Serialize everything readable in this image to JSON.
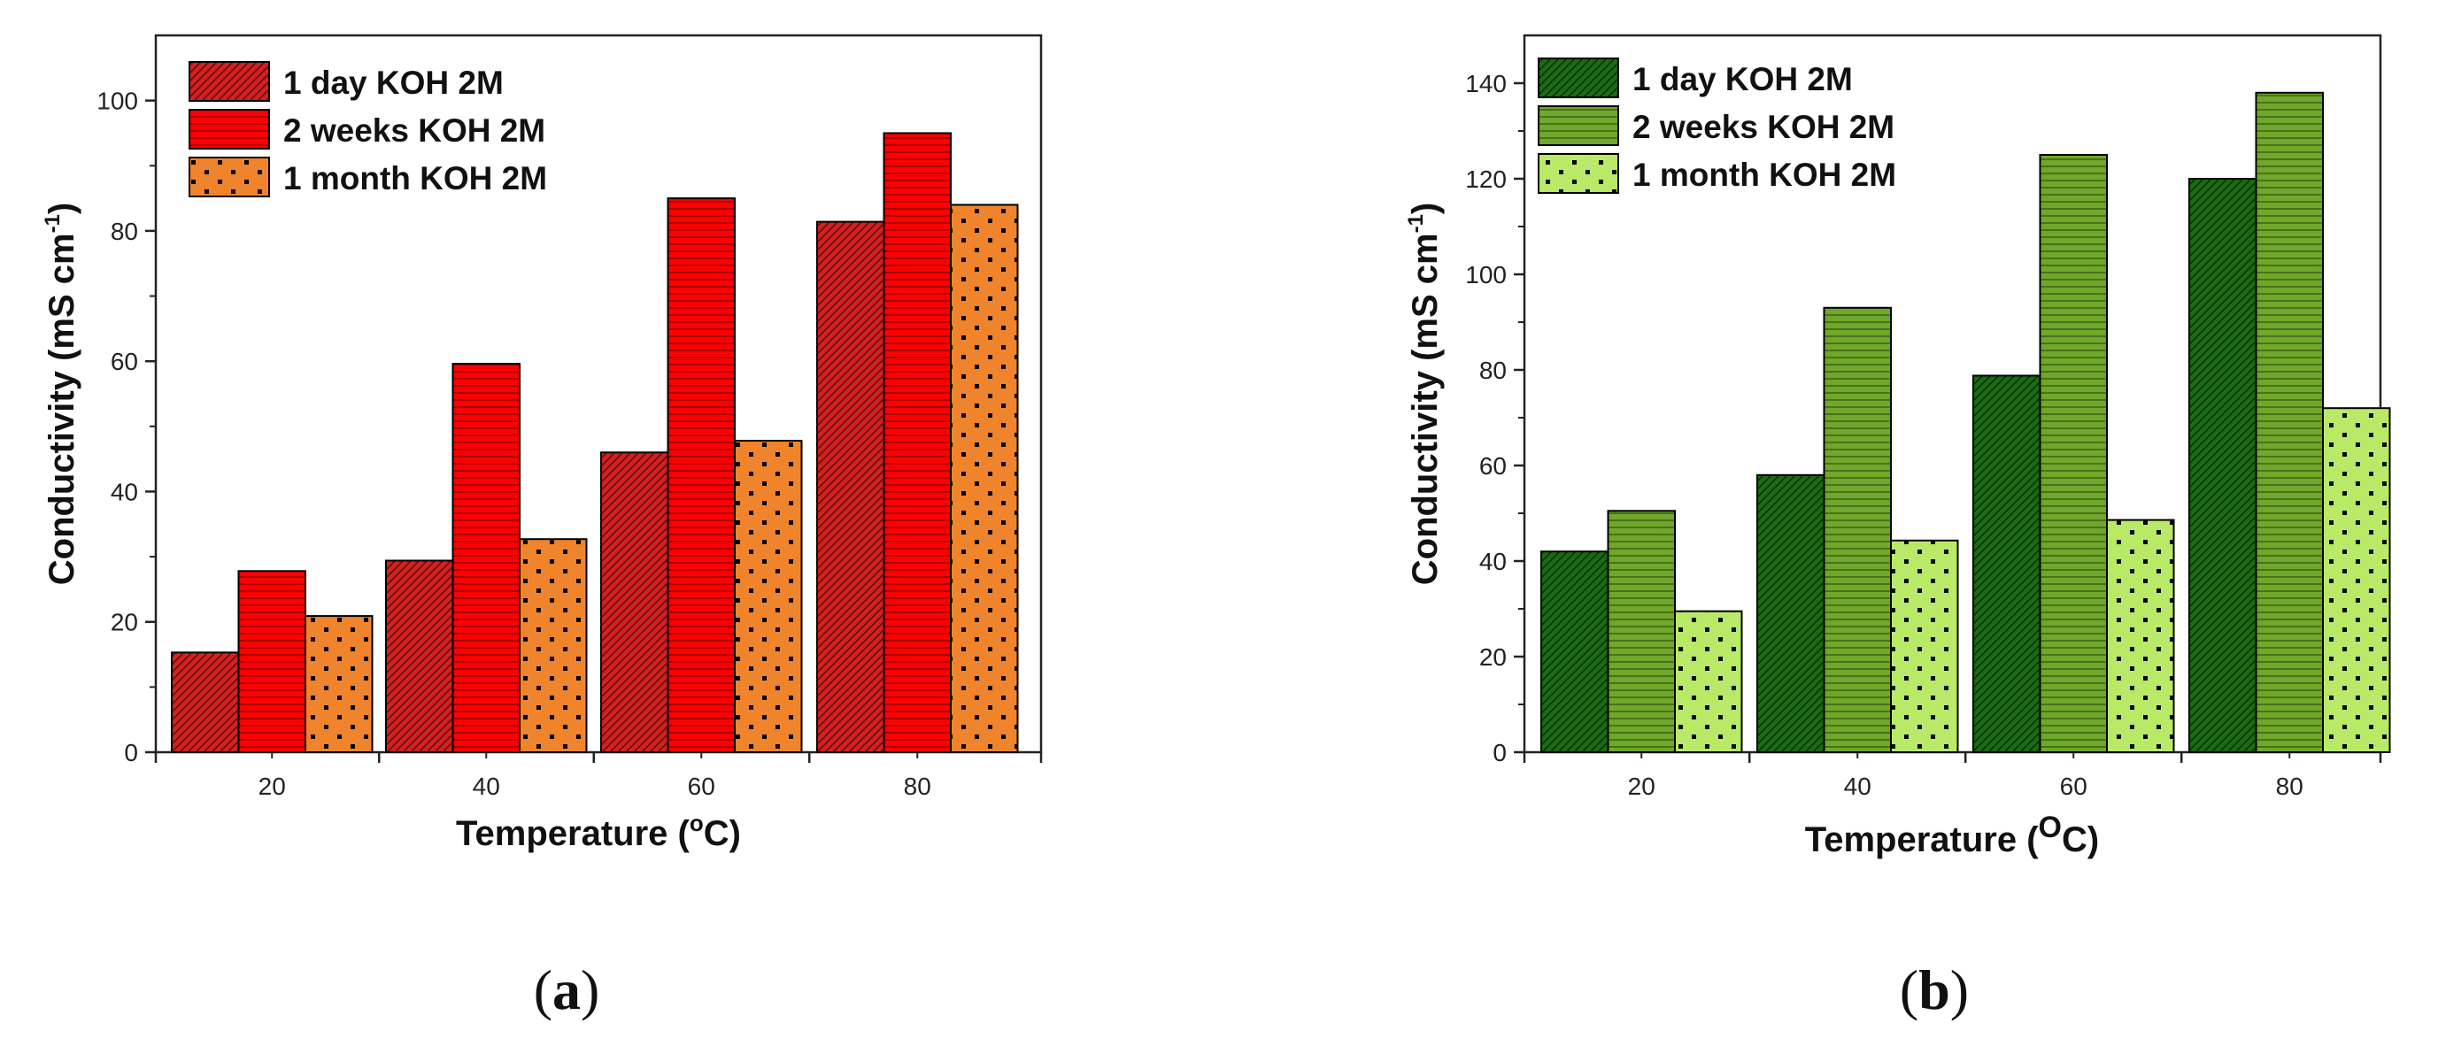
{
  "colors": {
    "red_dark": "#d42020",
    "red": "#ff0000",
    "orange": "#f0842c",
    "green_dark": "#1b6b14",
    "green": "#6fa82a",
    "green_light": "#b8ea68",
    "axis": "#222222"
  },
  "chart_data": [
    {
      "type": "bar",
      "panel_label": "a",
      "categories": [
        "20",
        "40",
        "60",
        "80"
      ],
      "series": [
        {
          "name": "1 day KOH 2M",
          "values": [
            15.3,
            29.4,
            46.0,
            81.4
          ],
          "color": "#d42020",
          "pattern": "diagonal"
        },
        {
          "name": "2 weeks KOH 2M",
          "values": [
            27.8,
            59.6,
            85.0,
            95.0
          ],
          "color": "#ff0000",
          "pattern": "horizontal"
        },
        {
          "name": "1 month KOH 2M",
          "values": [
            20.9,
            32.7,
            47.8,
            84.0
          ],
          "color": "#f0842c",
          "pattern": "dots"
        }
      ],
      "xlabel": "Temperature (",
      "xlabel_sup": "o",
      "xlabel_unit": "C)",
      "ylabel": "Conductivity (mS cm",
      "ylabel_sup": "-1",
      "ylabel_end": ")",
      "ylim": [
        0,
        110
      ],
      "yticks": [
        "0",
        "20",
        "40",
        "60",
        "80",
        "100"
      ],
      "ytick_values": [
        0,
        20,
        40,
        60,
        80,
        100
      ],
      "legend_position": "top-left",
      "grid": false
    },
    {
      "type": "bar",
      "panel_label": "b",
      "categories": [
        "20",
        "40",
        "60",
        "80"
      ],
      "series": [
        {
          "name": "1 day KOH 2M",
          "values": [
            42.0,
            58.0,
            78.8,
            120.0
          ],
          "color": "#1b6b14",
          "pattern": "diagonal"
        },
        {
          "name": "2 weeks KOH 2M",
          "values": [
            50.5,
            93.0,
            125.0,
            138.0
          ],
          "color": "#6fa82a",
          "pattern": "horizontal"
        },
        {
          "name": "1 month KOH 2M",
          "values": [
            29.5,
            44.3,
            48.6,
            72.0
          ],
          "color": "#b8ea68",
          "pattern": "dots"
        }
      ],
      "xlabel": "Temperature (",
      "xlabel_sup": "O",
      "xlabel_unit": "C)",
      "ylabel": "Conductivity (mS cm",
      "ylabel_sup": "-1",
      "ylabel_end": ")",
      "ylim": [
        0,
        150
      ],
      "yticks": [
        "0",
        "20",
        "40",
        "60",
        "80",
        "100",
        "120",
        "140"
      ],
      "ytick_values": [
        0,
        20,
        40,
        60,
        80,
        100,
        120,
        140
      ],
      "legend_position": "top-left",
      "grid": false
    }
  ]
}
